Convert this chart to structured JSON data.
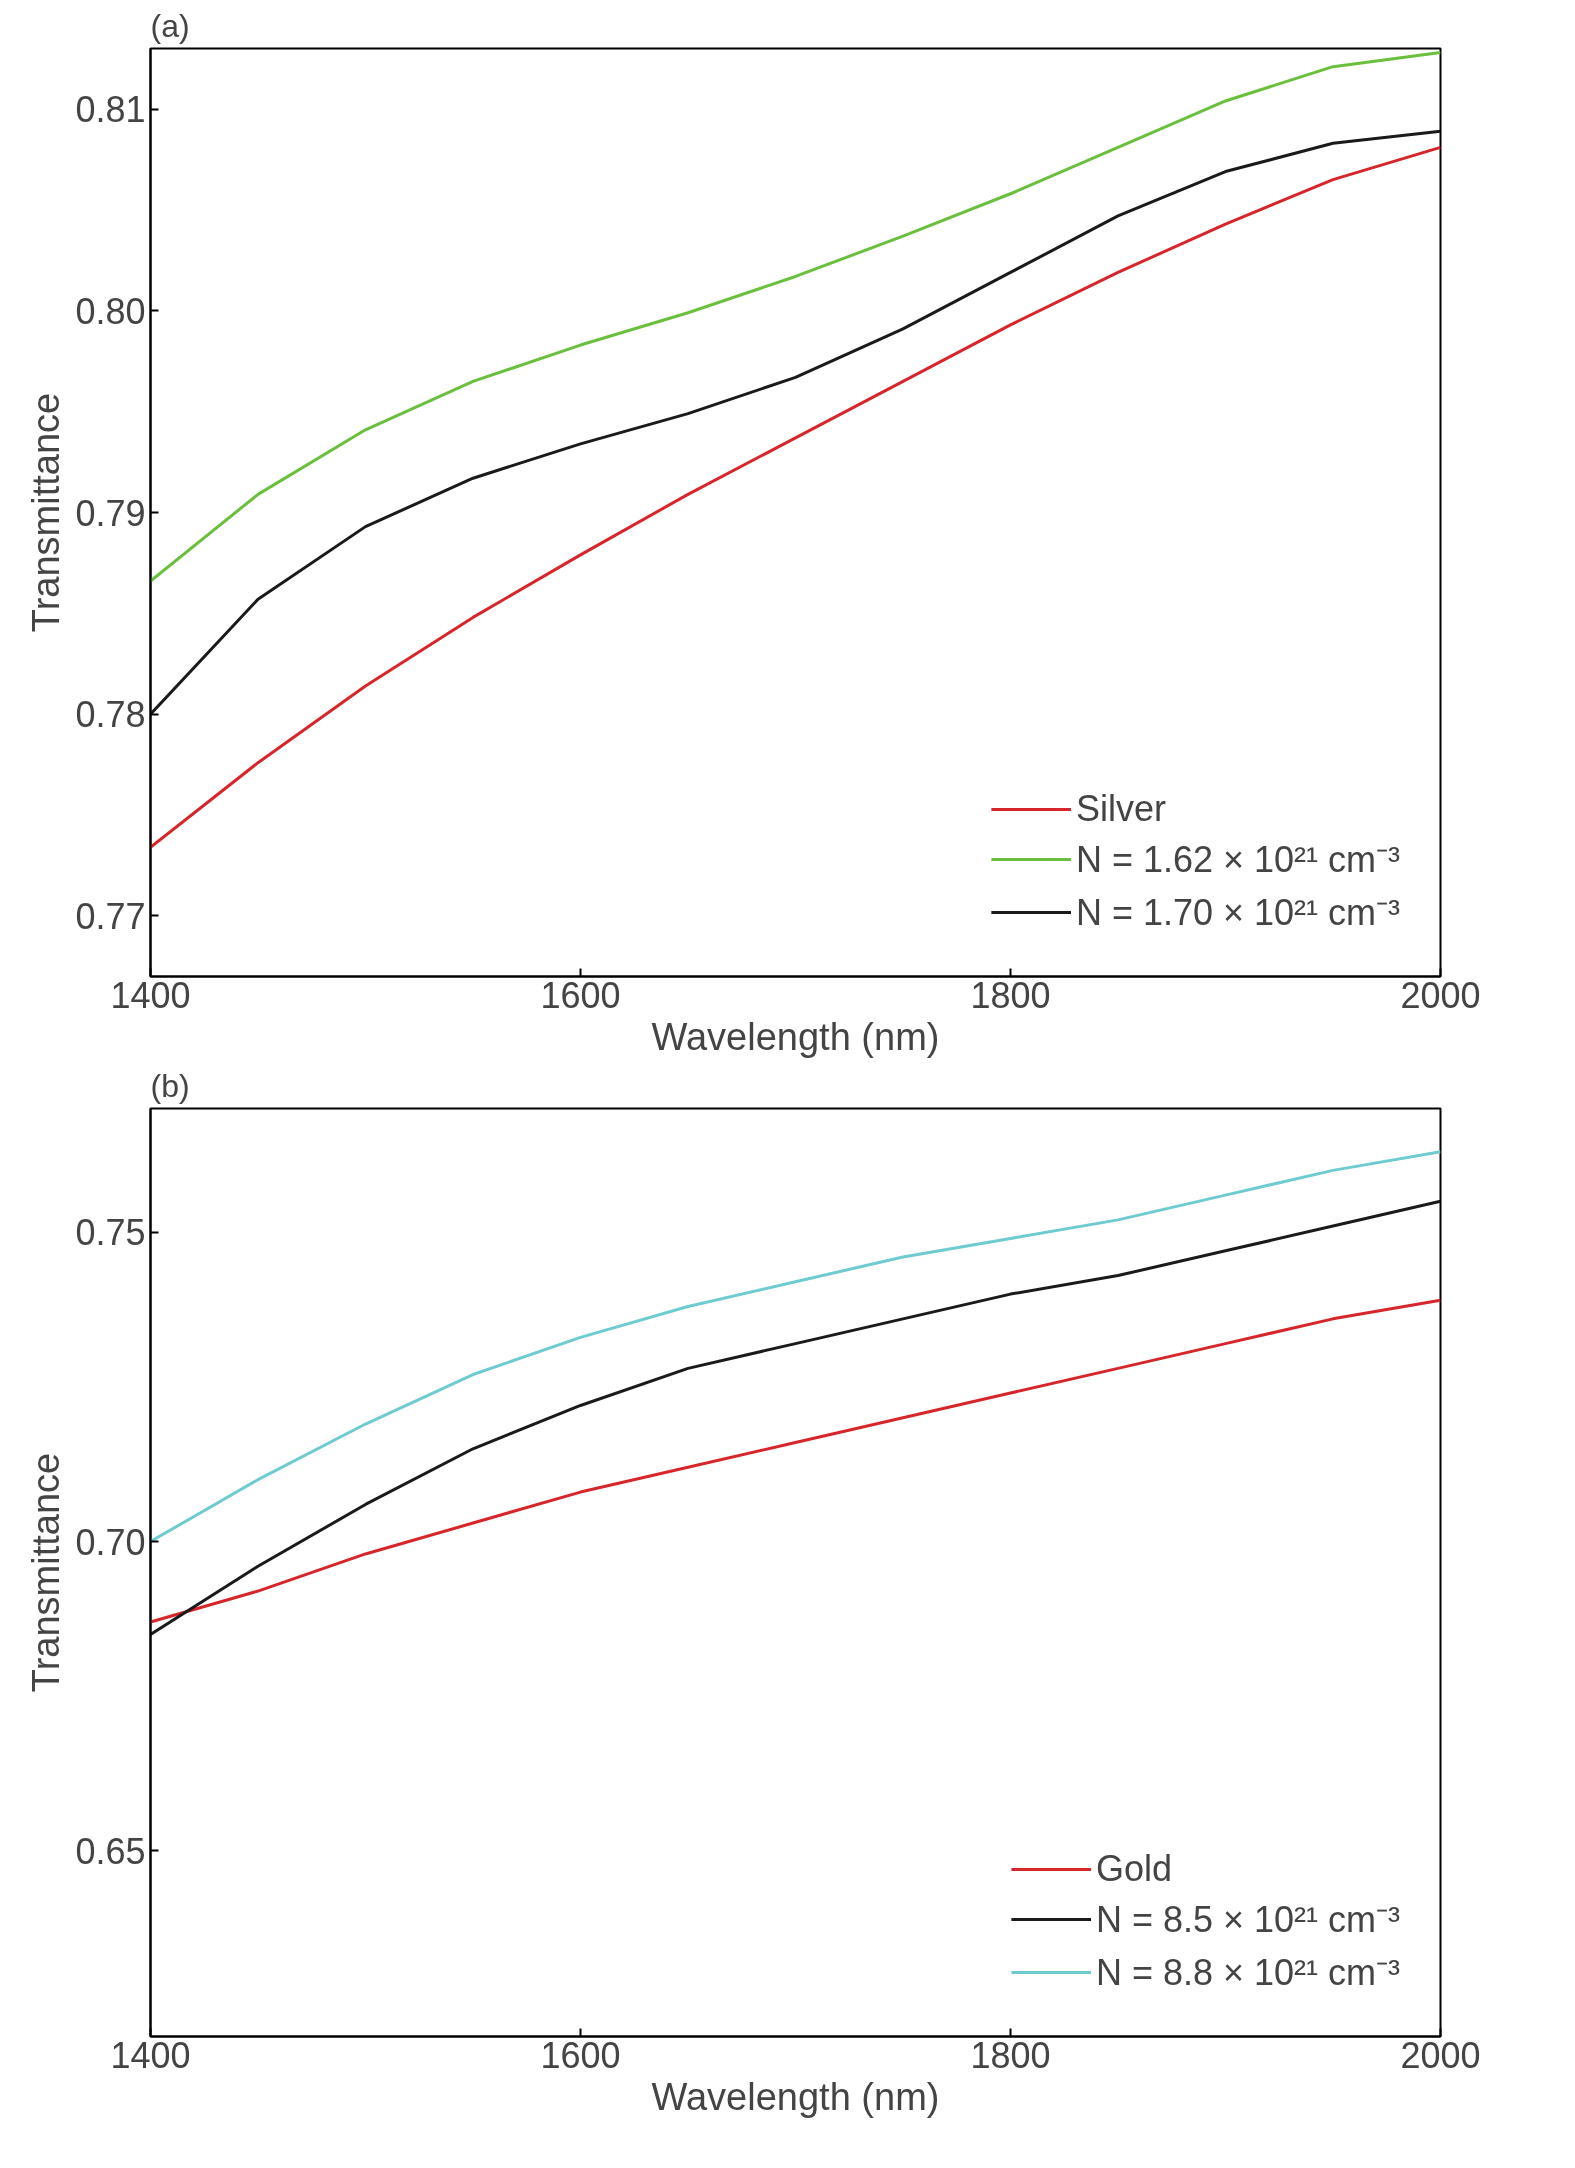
{
  "chart_data": [
    {
      "type": "line",
      "title": "(a)",
      "xlabel": "Wavelength (nm)",
      "ylabel": "Transmittance",
      "x": [
        1400,
        1450,
        1500,
        1550,
        1600,
        1650,
        1700,
        1750,
        1800,
        1850,
        1900,
        1950,
        2000
      ],
      "xlim": [
        1400,
        2000
      ],
      "ylim": [
        0.767,
        0.813
      ],
      "xticks": [
        1400,
        1600,
        1800,
        2000
      ],
      "yticks": [
        0.77,
        0.78,
        0.79,
        {
          "value": 0.8,
          "label": "0.80"
        },
        0.81
      ],
      "legend": "bottom right",
      "series": [
        {
          "name": "Silver",
          "color": "#d7262b",
          "values": [
            0.7734,
            0.7776,
            0.7814,
            0.7848,
            0.7879,
            0.7909,
            0.7937,
            0.7965,
            0.7993,
            0.8019,
            0.8043,
            0.8065,
            0.8081
          ]
        },
        {
          "name": "N = 1.62 × 10²¹ cm⁻³",
          "color": "#6abf3c",
          "values": [
            0.7866,
            0.7909,
            0.7941,
            0.7965,
            0.7983,
            0.7999,
            0.8017,
            0.8037,
            0.8058,
            0.8081,
            0.8104,
            0.8121,
            0.8128
          ]
        },
        {
          "name": "N = 1.70 × 10²¹ cm⁻³",
          "color": "#1a1a1a",
          "values": [
            0.78,
            0.7857,
            0.7893,
            0.7917,
            0.7934,
            0.7949,
            0.7967,
            0.7991,
            0.8019,
            0.8047,
            0.8069,
            0.8083,
            0.8089
          ]
        }
      ]
    },
    {
      "type": "line",
      "title": "(b)",
      "xlabel": "Wavelength (nm)",
      "ylabel": "Transmittance",
      "x": [
        1400,
        1450,
        1500,
        1550,
        1600,
        1650,
        1700,
        1750,
        1800,
        1850,
        1900,
        1950,
        2000
      ],
      "xlim": [
        1400,
        2000
      ],
      "ylim": [
        0.62,
        0.77
      ],
      "xticks": [
        1400,
        1600,
        1800,
        2000
      ],
      "yticks": [
        0.65,
        {
          "value": 0.7,
          "label": "0.70"
        },
        0.75
      ],
      "legend": "bottom right",
      "series": [
        {
          "name": "Gold",
          "color": "#d7262b",
          "values": [
            0.687,
            0.692,
            0.698,
            0.703,
            0.708,
            0.712,
            0.716,
            0.72,
            0.724,
            0.728,
            0.732,
            0.736,
            0.739
          ]
        },
        {
          "name": "N = 8.5 × 10²¹ cm⁻³",
          "color": "#1a1a1a",
          "values": [
            0.685,
            0.696,
            0.706,
            0.715,
            0.722,
            0.728,
            0.732,
            0.736,
            0.74,
            0.743,
            0.747,
            0.751,
            0.755
          ]
        },
        {
          "name": "N = 8.8 × 10²¹ cm⁻³",
          "color": "#6ecbcf",
          "values": [
            0.7,
            0.71,
            0.719,
            0.727,
            0.733,
            0.738,
            0.742,
            0.746,
            0.749,
            0.752,
            0.756,
            0.76,
            0.763
          ]
        }
      ]
    }
  ]
}
